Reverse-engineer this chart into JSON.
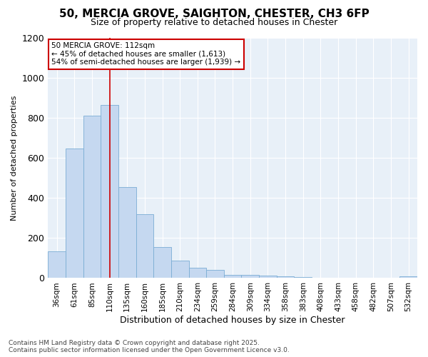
{
  "title_line1": "50, MERCIA GROVE, SAIGHTON, CHESTER, CH3 6FP",
  "title_line2": "Size of property relative to detached houses in Chester",
  "xlabel": "Distribution of detached houses by size in Chester",
  "ylabel": "Number of detached properties",
  "bar_labels": [
    "36sqm",
    "61sqm",
    "85sqm",
    "110sqm",
    "135sqm",
    "160sqm",
    "185sqm",
    "210sqm",
    "234sqm",
    "259sqm",
    "284sqm",
    "309sqm",
    "334sqm",
    "358sqm",
    "383sqm",
    "408sqm",
    "433sqm",
    "458sqm",
    "482sqm",
    "507sqm",
    "532sqm"
  ],
  "bar_values": [
    135,
    645,
    810,
    865,
    455,
    320,
    155,
    88,
    50,
    40,
    17,
    17,
    12,
    8,
    4,
    3,
    2,
    1,
    1,
    1,
    8
  ],
  "bar_color": "#c5d8f0",
  "bar_edge_color": "#7aadd4",
  "vline_x": 3,
  "vline_color": "#cc0000",
  "ylim": [
    0,
    1200
  ],
  "yticks": [
    0,
    200,
    400,
    600,
    800,
    1000,
    1200
  ],
  "annotation_title": "50 MERCIA GROVE: 112sqm",
  "annotation_line2": "← 45% of detached houses are smaller (1,613)",
  "annotation_line3": "54% of semi-detached houses are larger (1,939) →",
  "annotation_box_color": "#ffffff",
  "annotation_box_edge": "#cc0000",
  "footer_line1": "Contains HM Land Registry data © Crown copyright and database right 2025.",
  "footer_line2": "Contains public sector information licensed under the Open Government Licence v3.0.",
  "fig_bg_color": "#ffffff",
  "plot_bg_color": "#e8f0f8",
  "grid_color": "#ffffff",
  "title_fontsize": 11,
  "subtitle_fontsize": 9,
  "ylabel_fontsize": 8,
  "xlabel_fontsize": 9,
  "tick_fontsize": 7.5,
  "footer_fontsize": 6.5
}
